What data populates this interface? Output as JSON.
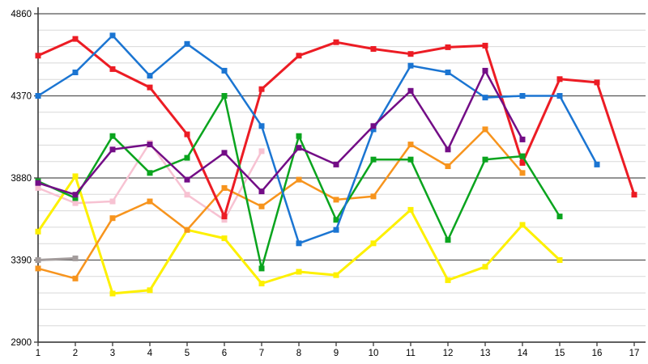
{
  "chart_data": {
    "type": "line",
    "title": "",
    "xlabel": "",
    "ylabel": "",
    "x": [
      1,
      2,
      3,
      4,
      5,
      6,
      7,
      8,
      9,
      10,
      11,
      12,
      13,
      14,
      15,
      16,
      17
    ],
    "x_tick_labels": [
      "1",
      "2",
      "3",
      "4",
      "5",
      "6",
      "7",
      "8",
      "9",
      "10",
      "11",
      "12",
      "13",
      "14",
      "15",
      "16",
      "17"
    ],
    "ylim": [
      2900,
      4860
    ],
    "yticks": [
      2900,
      3390,
      3880,
      4370,
      4860
    ],
    "ytick_labels": [
      "2900",
      "3390",
      "3880",
      "4370",
      "4860"
    ],
    "minor_grid_step": 98,
    "grid": true,
    "legend_position": "none",
    "axis_color": "#3a3a3a",
    "major_grid_color": "#555555",
    "minor_grid_color": "#d8d8d8",
    "series": [
      {
        "name": "gray",
        "color": "#a39c9c",
        "line_width": 3,
        "values": [
          3390,
          3400,
          null,
          null,
          null,
          null,
          null,
          null,
          null,
          null,
          null,
          null,
          null,
          null,
          null,
          null,
          null
        ]
      },
      {
        "name": "pink",
        "color": "#f7c2d2",
        "line_width": 2.5,
        "values": [
          3820,
          3730,
          3740,
          4090,
          3780,
          3630,
          4040,
          null,
          null,
          null,
          null,
          null,
          null,
          null,
          null,
          null,
          null
        ]
      },
      {
        "name": "yellow",
        "color": "#fdf000",
        "line_width": 3,
        "values": [
          3560,
          3890,
          3190,
          3210,
          3570,
          3520,
          3250,
          3320,
          3300,
          3490,
          3690,
          3270,
          3350,
          3600,
          3390,
          null,
          null
        ]
      },
      {
        "name": "orange",
        "color": "#f7941d",
        "line_width": 2.5,
        "values": [
          3340,
          3280,
          3640,
          3740,
          3570,
          3820,
          3710,
          3870,
          3750,
          3770,
          4080,
          3950,
          4170,
          3910,
          null,
          null,
          null
        ]
      },
      {
        "name": "red",
        "color": "#ec1c24",
        "line_width": 3,
        "values": [
          4610,
          4710,
          4530,
          4420,
          4140,
          3650,
          4410,
          4610,
          4690,
          4650,
          4620,
          4660,
          4670,
          3970,
          4470,
          4450,
          3780
        ]
      },
      {
        "name": "green",
        "color": "#0aa41e",
        "line_width": 2.5,
        "values": [
          3860,
          3760,
          4130,
          3910,
          4000,
          4370,
          3340,
          4130,
          3630,
          3990,
          3990,
          3510,
          3990,
          4010,
          3650,
          null,
          null
        ]
      },
      {
        "name": "blue",
        "color": "#1b75d2",
        "line_width": 2.5,
        "values": [
          4370,
          4510,
          4730,
          4490,
          4680,
          4520,
          4190,
          3490,
          3570,
          4170,
          4550,
          4510,
          4360,
          4370,
          4370,
          3960,
          null
        ]
      },
      {
        "name": "purple",
        "color": "#730d86",
        "line_width": 2.5,
        "values": [
          3850,
          3780,
          4050,
          4080,
          3870,
          4030,
          3800,
          4060,
          3960,
          4190,
          4400,
          4050,
          4520,
          4110,
          null,
          null,
          null
        ]
      }
    ]
  }
}
